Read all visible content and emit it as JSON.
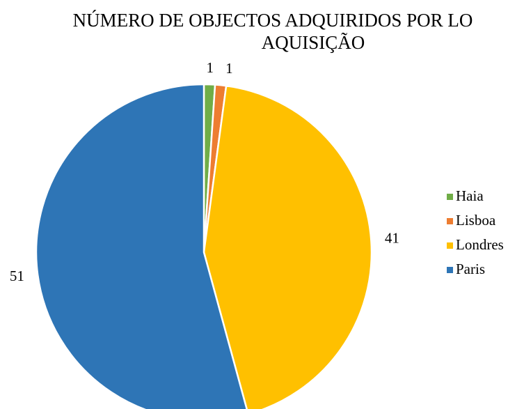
{
  "chart_data": {
    "type": "pie",
    "title": [
      "NÚMERO DE OBJECTOS ADQUIRIDOS POR LO",
      "AQUISIÇÃO"
    ],
    "categories": [
      "Haia",
      "Lisboa",
      "Londres",
      "Paris"
    ],
    "values": [
      1,
      1,
      41,
      51
    ],
    "colors": [
      "#70ad47",
      "#ed7d31",
      "#ffc000",
      "#2e75b6"
    ],
    "legend": "right"
  }
}
